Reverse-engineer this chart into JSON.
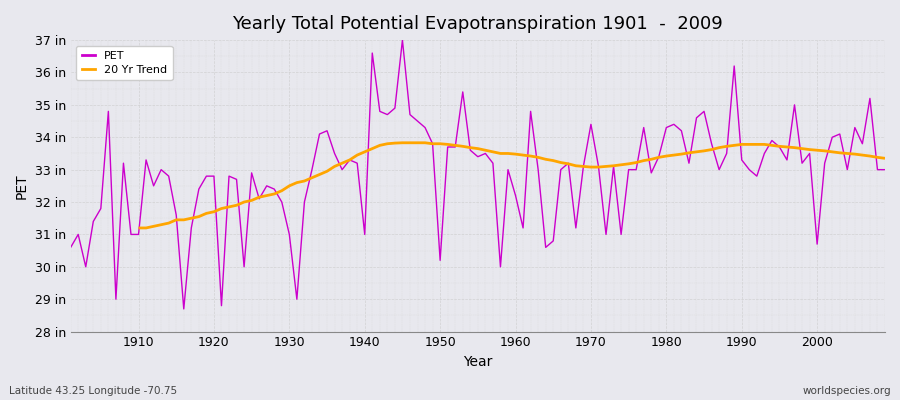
{
  "title": "Yearly Total Potential Evapotranspiration 1901  -  2009",
  "xlabel": "Year",
  "ylabel": "PET",
  "subtitle_left": "Latitude 43.25 Longitude -70.75",
  "subtitle_right": "worldspecies.org",
  "pet_color": "#cc00cc",
  "trend_color": "#ffa500",
  "background_color": "#e8e8ee",
  "grid_color": "#cccccc",
  "ylim": [
    28,
    37
  ],
  "ytick_min": 28,
  "ytick_max": 37,
  "xlim_min": 1901,
  "xlim_max": 2009,
  "xticks": [
    1910,
    1920,
    1930,
    1940,
    1950,
    1960,
    1970,
    1980,
    1990,
    2000
  ],
  "years": [
    1901,
    1902,
    1903,
    1904,
    1905,
    1906,
    1907,
    1908,
    1909,
    1910,
    1911,
    1912,
    1913,
    1914,
    1915,
    1916,
    1917,
    1918,
    1919,
    1920,
    1921,
    1922,
    1923,
    1924,
    1925,
    1926,
    1927,
    1928,
    1929,
    1930,
    1931,
    1932,
    1933,
    1934,
    1935,
    1936,
    1937,
    1938,
    1939,
    1940,
    1941,
    1942,
    1943,
    1944,
    1945,
    1946,
    1947,
    1948,
    1949,
    1950,
    1951,
    1952,
    1953,
    1954,
    1955,
    1956,
    1957,
    1958,
    1959,
    1960,
    1961,
    1962,
    1963,
    1964,
    1965,
    1966,
    1967,
    1968,
    1969,
    1970,
    1971,
    1972,
    1973,
    1974,
    1975,
    1976,
    1977,
    1978,
    1979,
    1980,
    1981,
    1982,
    1983,
    1984,
    1985,
    1986,
    1987,
    1988,
    1989,
    1990,
    1991,
    1992,
    1993,
    1994,
    1995,
    1996,
    1997,
    1998,
    1999,
    2000,
    2001,
    2002,
    2003,
    2004,
    2005,
    2006,
    2007,
    2008,
    2009
  ],
  "pet_values": [
    30.6,
    31.0,
    30.0,
    31.4,
    31.8,
    34.8,
    29.0,
    33.2,
    31.0,
    31.0,
    33.3,
    32.5,
    33.0,
    32.8,
    31.6,
    28.7,
    31.2,
    32.4,
    32.8,
    32.8,
    28.8,
    32.8,
    32.7,
    30.0,
    32.9,
    32.1,
    32.5,
    32.4,
    32.0,
    31.0,
    29.0,
    32.0,
    33.0,
    34.1,
    34.2,
    33.5,
    33.0,
    33.3,
    33.2,
    31.0,
    36.6,
    34.8,
    34.7,
    34.9,
    37.0,
    34.7,
    34.5,
    34.3,
    33.8,
    30.2,
    33.7,
    33.7,
    35.4,
    33.6,
    33.4,
    33.5,
    33.2,
    30.0,
    33.0,
    32.2,
    31.2,
    34.8,
    33.0,
    30.6,
    30.8,
    33.0,
    33.2,
    31.2,
    33.1,
    34.4,
    33.1,
    31.0,
    33.1,
    31.0,
    33.0,
    33.0,
    34.3,
    32.9,
    33.4,
    34.3,
    34.4,
    34.2,
    33.2,
    34.6,
    34.8,
    33.8,
    33.0,
    33.5,
    36.2,
    33.3,
    33.0,
    32.8,
    33.5,
    33.9,
    33.7,
    33.3,
    35.0,
    33.2,
    33.5,
    30.7,
    33.2,
    34.0,
    34.1,
    33.0,
    34.3,
    33.8,
    35.2,
    33.0,
    33.0
  ],
  "trend_years": [
    1910,
    1911,
    1912,
    1913,
    1914,
    1915,
    1916,
    1917,
    1918,
    1919,
    1920,
    1921,
    1922,
    1923,
    1924,
    1925,
    1926,
    1927,
    1928,
    1929,
    1930,
    1931,
    1932,
    1933,
    1934,
    1935,
    1936,
    1937,
    1938,
    1939,
    1940,
    1941,
    1942,
    1943,
    1944,
    1945,
    1946,
    1947,
    1948,
    1949,
    1950,
    1951,
    1952,
    1953,
    1954,
    1955,
    1956,
    1957,
    1958,
    1959,
    1960,
    1961,
    1962,
    1963,
    1964,
    1965,
    1966,
    1967,
    1968,
    1969,
    1970,
    1971,
    1972,
    1973,
    1974,
    1975,
    1976,
    1977,
    1978,
    1979,
    1980,
    1981,
    1982,
    1983,
    1984,
    1985,
    1986,
    1987,
    1988,
    1989,
    1990,
    1991,
    1992,
    1993,
    1994,
    1995,
    1996,
    1997,
    1998,
    1999,
    2000,
    2001,
    2002,
    2003,
    2004,
    2005,
    2006,
    2007,
    2008,
    2009
  ],
  "trend_values": [
    31.2,
    31.2,
    31.25,
    31.3,
    31.35,
    31.45,
    31.45,
    31.5,
    31.55,
    31.65,
    31.7,
    31.8,
    31.85,
    31.9,
    32.0,
    32.05,
    32.15,
    32.2,
    32.25,
    32.35,
    32.5,
    32.6,
    32.65,
    32.75,
    32.85,
    32.95,
    33.1,
    33.2,
    33.3,
    33.45,
    33.55,
    33.65,
    33.75,
    33.8,
    33.82,
    33.83,
    33.83,
    33.83,
    33.83,
    33.8,
    33.8,
    33.78,
    33.75,
    33.72,
    33.68,
    33.65,
    33.6,
    33.55,
    33.5,
    33.5,
    33.48,
    33.45,
    33.42,
    33.38,
    33.32,
    33.28,
    33.22,
    33.18,
    33.12,
    33.1,
    33.08,
    33.08,
    33.1,
    33.12,
    33.15,
    33.18,
    33.22,
    33.28,
    33.32,
    33.38,
    33.42,
    33.45,
    33.48,
    33.52,
    33.55,
    33.58,
    33.62,
    33.68,
    33.72,
    33.75,
    33.78,
    33.78,
    33.78,
    33.78,
    33.75,
    33.72,
    33.7,
    33.68,
    33.65,
    33.62,
    33.6,
    33.58,
    33.55,
    33.52,
    33.5,
    33.48,
    33.45,
    33.42,
    33.38,
    33.35
  ]
}
